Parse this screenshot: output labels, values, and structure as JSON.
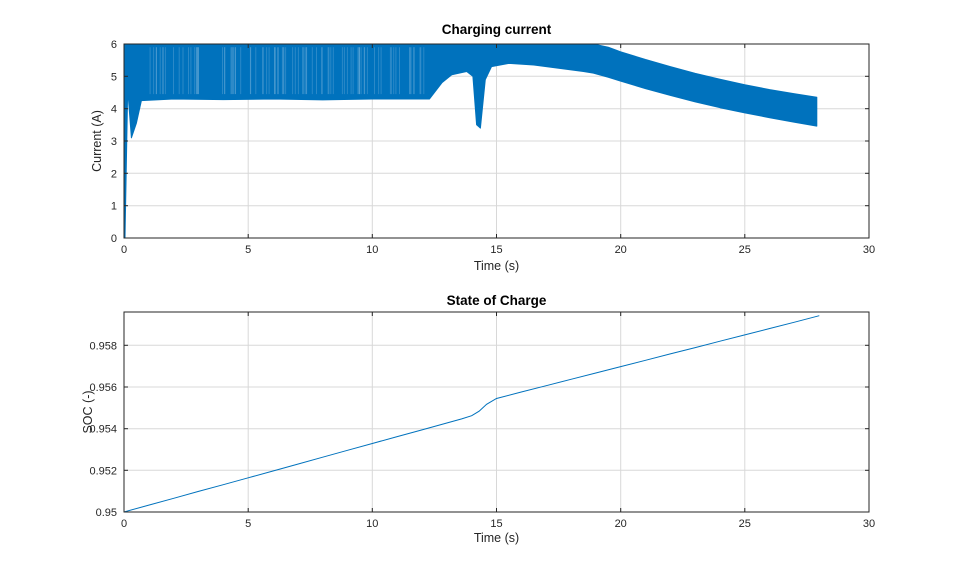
{
  "figure": {
    "background": "#ffffff",
    "series_color": "#0072BD",
    "grid_color": "#d8d8d8",
    "axes_color": "#262626"
  },
  "chart_data": [
    {
      "id": "current",
      "type": "area",
      "title": "Charging current",
      "xlabel": "Time (s)",
      "ylabel": "Current (A)",
      "xlim": [
        0,
        30
      ],
      "ylim": [
        0,
        6
      ],
      "grid": true,
      "legend": "none",
      "line_color": "#0072BD",
      "xticks": [
        {
          "v": 0,
          "label": "0"
        },
        {
          "v": 5,
          "label": "5"
        },
        {
          "v": 10,
          "label": "10"
        },
        {
          "v": 15,
          "label": "15"
        },
        {
          "v": 20,
          "label": "20"
        },
        {
          "v": 25,
          "label": "25"
        },
        {
          "v": 30,
          "label": "30"
        }
      ],
      "yticks": [
        {
          "v": 0,
          "label": "0"
        },
        {
          "v": 1,
          "label": "1"
        },
        {
          "v": 2,
          "label": "2"
        },
        {
          "v": 3,
          "label": "3"
        },
        {
          "v": 4,
          "label": "4"
        },
        {
          "v": 5,
          "label": "5"
        },
        {
          "v": 6,
          "label": "6"
        }
      ],
      "note": "dense switching waveform shown as envelope [t, min, max]",
      "envelope": [
        [
          0,
          0,
          0.2
        ],
        [
          0.04,
          0,
          6
        ],
        [
          0.15,
          4.6,
          6
        ],
        [
          0.3,
          3.1,
          6
        ],
        [
          0.5,
          3.55,
          6
        ],
        [
          0.7,
          4.25,
          6
        ],
        [
          2,
          4.3,
          6
        ],
        [
          4,
          4.28,
          6
        ],
        [
          6,
          4.3,
          6
        ],
        [
          8,
          4.27,
          6
        ],
        [
          10,
          4.3,
          6
        ],
        [
          12.3,
          4.3,
          6
        ],
        [
          12.8,
          4.8,
          6
        ],
        [
          13.2,
          5.05,
          6
        ],
        [
          13.8,
          5.15,
          6
        ],
        [
          14.05,
          5.0,
          6
        ],
        [
          14.2,
          3.5,
          6
        ],
        [
          14.35,
          3.4,
          6
        ],
        [
          14.55,
          4.9,
          6
        ],
        [
          14.8,
          5.3,
          6
        ],
        [
          15.5,
          5.4,
          6
        ],
        [
          16.5,
          5.35,
          6
        ],
        [
          17.5,
          5.25,
          6
        ],
        [
          18.5,
          5.15,
          6
        ],
        [
          18.9,
          5.1,
          6
        ],
        [
          19.5,
          4.97,
          5.9
        ],
        [
          20,
          4.85,
          5.76
        ],
        [
          21,
          4.62,
          5.52
        ],
        [
          22,
          4.41,
          5.3
        ],
        [
          23,
          4.21,
          5.09
        ],
        [
          24,
          4.03,
          4.91
        ],
        [
          25,
          3.87,
          4.74
        ],
        [
          26,
          3.72,
          4.59
        ],
        [
          27,
          3.58,
          4.46
        ],
        [
          27.9,
          3.46,
          4.35
        ]
      ]
    },
    {
      "id": "soc",
      "type": "line",
      "title": "State of Charge",
      "xlabel": "Time (s)",
      "ylabel": "SOC (-)",
      "xlim": [
        0,
        30
      ],
      "ylim": [
        0.95,
        0.9596
      ],
      "grid": true,
      "legend": "none",
      "line_color": "#0072BD",
      "xticks": [
        {
          "v": 0,
          "label": "0"
        },
        {
          "v": 5,
          "label": "5"
        },
        {
          "v": 10,
          "label": "10"
        },
        {
          "v": 15,
          "label": "15"
        },
        {
          "v": 20,
          "label": "20"
        },
        {
          "v": 25,
          "label": "25"
        },
        {
          "v": 30,
          "label": "30"
        }
      ],
      "yticks": [
        {
          "v": 0.95,
          "label": "0.95"
        },
        {
          "v": 0.952,
          "label": "0.952"
        },
        {
          "v": 0.954,
          "label": "0.954"
        },
        {
          "v": 0.956,
          "label": "0.956"
        },
        {
          "v": 0.958,
          "label": "0.958"
        }
      ],
      "points": [
        [
          0,
          0.95
        ],
        [
          1,
          0.95033
        ],
        [
          2,
          0.95066
        ],
        [
          3,
          0.95099
        ],
        [
          4,
          0.95131
        ],
        [
          5,
          0.95164
        ],
        [
          6,
          0.95197
        ],
        [
          7,
          0.9523
        ],
        [
          8,
          0.95263
        ],
        [
          9,
          0.95296
        ],
        [
          10,
          0.95329
        ],
        [
          11,
          0.95362
        ],
        [
          12,
          0.95394
        ],
        [
          13,
          0.95427
        ],
        [
          13.6,
          0.95447
        ],
        [
          14,
          0.95462
        ],
        [
          14.3,
          0.95484
        ],
        [
          14.6,
          0.95517
        ],
        [
          15,
          0.95545
        ],
        [
          16,
          0.95576
        ],
        [
          17,
          0.95606
        ],
        [
          18,
          0.95637
        ],
        [
          19,
          0.95667
        ],
        [
          20,
          0.95698
        ],
        [
          21,
          0.95728
        ],
        [
          22,
          0.95759
        ],
        [
          23,
          0.95789
        ],
        [
          24,
          0.9582
        ],
        [
          25,
          0.9585
        ],
        [
          26,
          0.95881
        ],
        [
          27,
          0.95911
        ],
        [
          28,
          0.95942
        ]
      ]
    }
  ]
}
